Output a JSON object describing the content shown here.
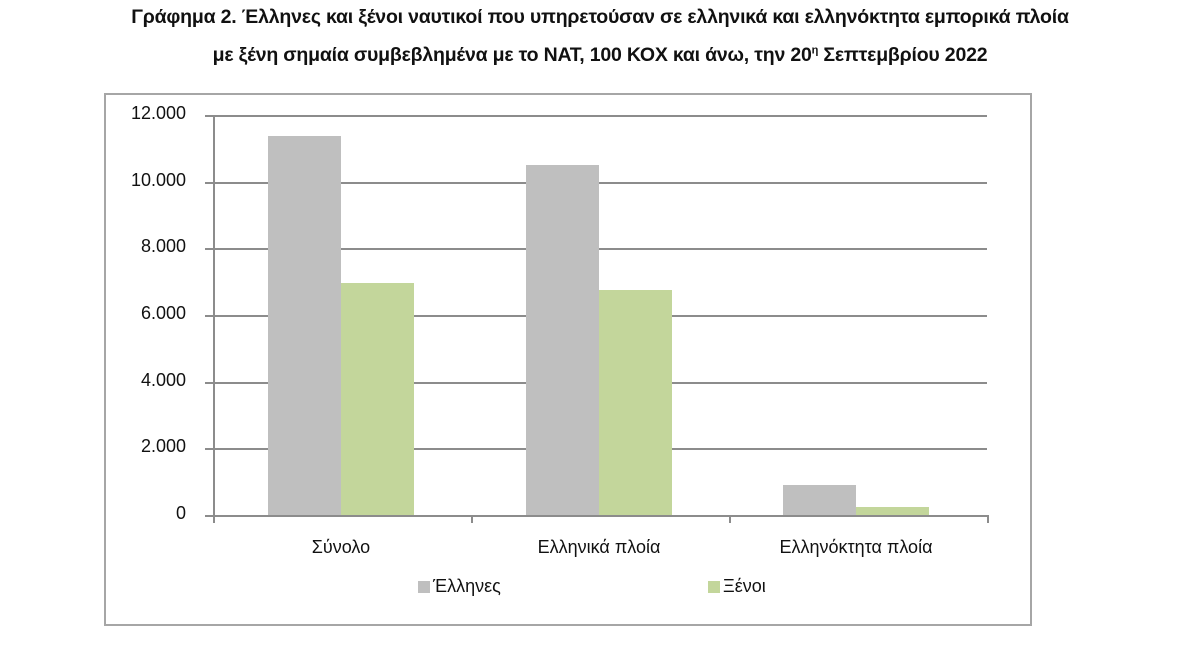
{
  "title": {
    "line1": "Γράφημα 2. Έλληνες και ξένοι ναυτικοί που υπηρετούσαν σε ελληνικά και ελληνόκτητα εμπορικά πλοία",
    "line2_pre": "με ξένη σημαία συμβεβλημένα με το ΝΑΤ, 100 ΚΟΧ και άνω, την 20",
    "line2_sup": "η",
    "line2_post": " Σεπτεμβρίου 2022"
  },
  "colors": {
    "greeks": "#bfbfbf",
    "foreigners": "#c3d69b",
    "grid": "#8c8c8c"
  },
  "chart_data": {
    "type": "bar",
    "title": "Γράφημα 2. Έλληνες και ξένοι ναυτικοί που υπηρετούσαν σε ελληνικά και ελληνόκτητα εμπορικά πλοία με ξένη σημαία συμβεβλημένα με το ΝΑΤ, 100 ΚΟΧ και άνω, την 20η Σεπτεμβρίου 2022",
    "categories": [
      "Σύνολο",
      "Ελληνικά πλοία",
      "Ελληνόκτητα πλοία"
    ],
    "series": [
      {
        "name": "Έλληνες",
        "values": [
          11370,
          10500,
          900
        ]
      },
      {
        "name": "Ξένοι",
        "values": [
          6960,
          6750,
          240
        ]
      }
    ],
    "xlabel": "",
    "ylabel": "",
    "ylim": [
      0,
      12000
    ],
    "yticks": [
      "0",
      "2.000",
      "4.000",
      "6.000",
      "8.000",
      "10.000",
      "12.000"
    ],
    "grid": true,
    "legend_position": "bottom"
  }
}
